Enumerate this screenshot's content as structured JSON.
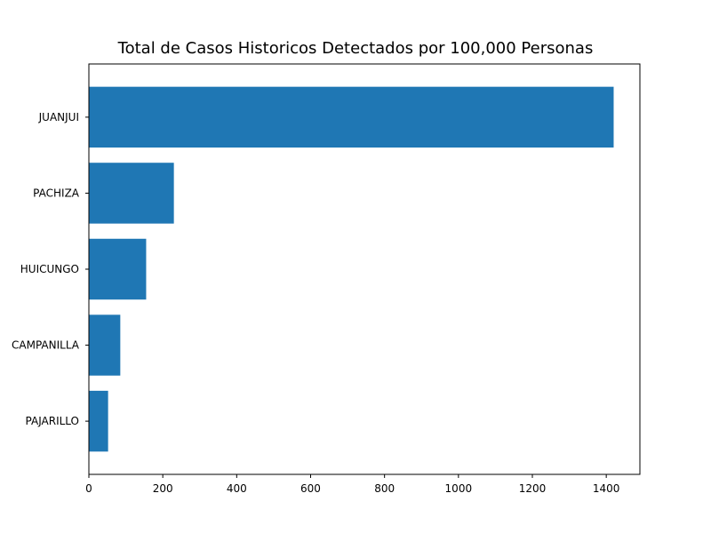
{
  "colors": {
    "bar": "#1f77b4",
    "axis": "#000000",
    "background": "#ffffff"
  },
  "chart_data": {
    "type": "bar",
    "orientation": "horizontal",
    "title": "Total de Casos Historicos Detectados por 100,000 Personas",
    "xlabel": "",
    "ylabel": "",
    "categories": [
      "JUANJUI",
      "PACHIZA",
      "HUICUNGO",
      "CAMPANILLA",
      "PAJARILLO"
    ],
    "values": [
      1420,
      230,
      155,
      85,
      52
    ],
    "xlim": [
      0,
      1491
    ],
    "x_ticks": [
      0,
      200,
      400,
      600,
      800,
      1000,
      1200,
      1400
    ],
    "x_tick_labels": [
      "0",
      "200",
      "400",
      "600",
      "800",
      "1000",
      "1200",
      "1400"
    ],
    "grid": false,
    "legend": "none"
  }
}
